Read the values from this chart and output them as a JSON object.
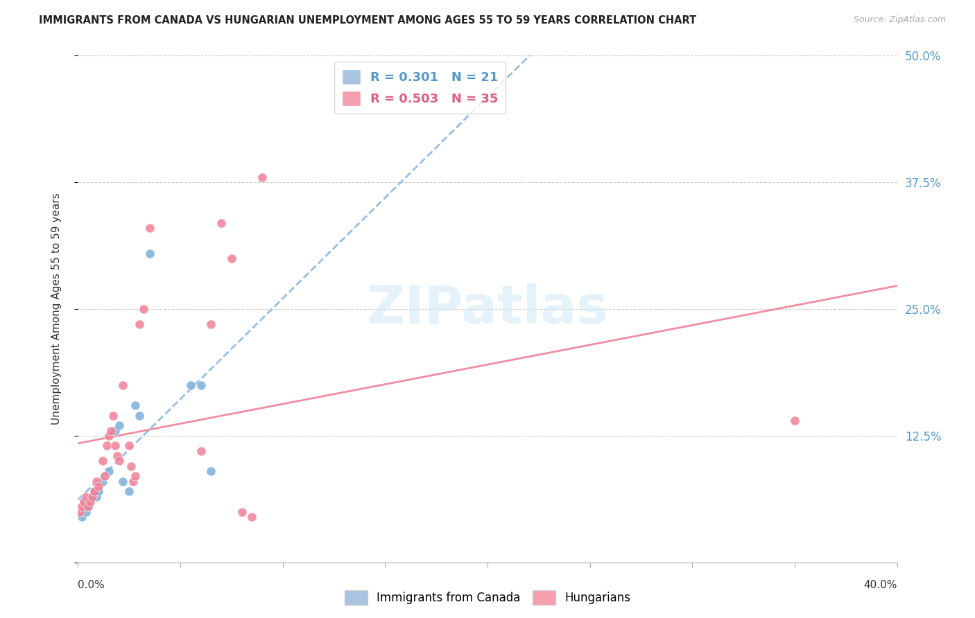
{
  "title": "IMMIGRANTS FROM CANADA VS HUNGARIAN UNEMPLOYMENT AMONG AGES 55 TO 59 YEARS CORRELATION CHART",
  "source": "Source: ZipAtlas.com",
  "ylabel": "Unemployment Among Ages 55 to 59 years",
  "xlim": [
    0.0,
    0.4
  ],
  "ylim": [
    0.0,
    0.5
  ],
  "yticks": [
    0.0,
    0.125,
    0.25,
    0.375,
    0.5
  ],
  "ytick_labels": [
    "",
    "12.5%",
    "25.0%",
    "37.5%",
    "50.0%"
  ],
  "canada_color": "#7ab0d8",
  "hungarian_color": "#f08098",
  "canada_trend_color": "#8ab8e0",
  "hungarian_trend_color": "#f08098",
  "watermark": "ZIPatlas",
  "legend_r1": "R = 0.301   N = 21",
  "legend_r2": "R = 0.503   N = 35",
  "legend_patch_color1": "#a8c4e0",
  "legend_patch_color2": "#f4a0b0",
  "legend_text_color1": "#5599cc",
  "legend_text_color2": "#e06080",
  "bottom_legend_label1": "Immigrants from Canada",
  "bottom_legend_label2": "Hungarians",
  "canada_scatter": [
    [
      0.002,
      0.045
    ],
    [
      0.003,
      0.06
    ],
    [
      0.004,
      0.05
    ],
    [
      0.005,
      0.055
    ],
    [
      0.006,
      0.06
    ],
    [
      0.007,
      0.065
    ],
    [
      0.008,
      0.07
    ],
    [
      0.009,
      0.065
    ],
    [
      0.01,
      0.07
    ],
    [
      0.012,
      0.08
    ],
    [
      0.015,
      0.09
    ],
    [
      0.018,
      0.13
    ],
    [
      0.02,
      0.135
    ],
    [
      0.022,
      0.08
    ],
    [
      0.025,
      0.07
    ],
    [
      0.028,
      0.155
    ],
    [
      0.03,
      0.145
    ],
    [
      0.055,
      0.175
    ],
    [
      0.06,
      0.175
    ],
    [
      0.065,
      0.09
    ],
    [
      0.035,
      0.305
    ]
  ],
  "hungarian_scatter": [
    [
      0.001,
      0.05
    ],
    [
      0.002,
      0.055
    ],
    [
      0.003,
      0.06
    ],
    [
      0.004,
      0.065
    ],
    [
      0.005,
      0.055
    ],
    [
      0.006,
      0.06
    ],
    [
      0.007,
      0.065
    ],
    [
      0.008,
      0.07
    ],
    [
      0.009,
      0.08
    ],
    [
      0.01,
      0.075
    ],
    [
      0.012,
      0.1
    ],
    [
      0.013,
      0.085
    ],
    [
      0.014,
      0.115
    ],
    [
      0.015,
      0.125
    ],
    [
      0.016,
      0.13
    ],
    [
      0.017,
      0.145
    ],
    [
      0.018,
      0.115
    ],
    [
      0.019,
      0.105
    ],
    [
      0.02,
      0.1
    ],
    [
      0.022,
      0.175
    ],
    [
      0.025,
      0.115
    ],
    [
      0.026,
      0.095
    ],
    [
      0.027,
      0.08
    ],
    [
      0.028,
      0.085
    ],
    [
      0.03,
      0.235
    ],
    [
      0.032,
      0.25
    ],
    [
      0.035,
      0.33
    ],
    [
      0.06,
      0.11
    ],
    [
      0.065,
      0.235
    ],
    [
      0.07,
      0.335
    ],
    [
      0.075,
      0.3
    ],
    [
      0.08,
      0.05
    ],
    [
      0.085,
      0.045
    ],
    [
      0.09,
      0.38
    ],
    [
      0.35,
      0.14
    ]
  ]
}
